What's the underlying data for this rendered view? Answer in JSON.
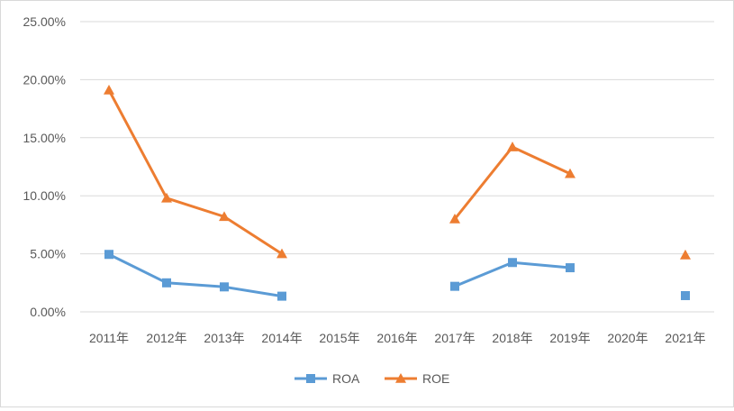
{
  "chart_data": {
    "type": "line",
    "categories": [
      "2011年",
      "2012年",
      "2013年",
      "2014年",
      "2015年",
      "2016年",
      "2017年",
      "2018年",
      "2019年",
      "2020年",
      "2021年"
    ],
    "series": [
      {
        "name": "ROA",
        "color": "#5b9bd5",
        "marker": "square",
        "values": [
          0.0495,
          0.025,
          0.0215,
          0.0135,
          null,
          null,
          0.022,
          0.0425,
          0.038,
          null,
          0.014
        ]
      },
      {
        "name": "ROE",
        "color": "#ed7d31",
        "marker": "triangle",
        "values": [
          0.191,
          0.098,
          0.082,
          0.05,
          null,
          null,
          0.08,
          0.142,
          0.119,
          null,
          0.049
        ]
      }
    ],
    "ylim": [
      0,
      0.25
    ],
    "yticks": [
      "0.00%",
      "5.00%",
      "10.00%",
      "15.00%",
      "20.00%",
      "25.00%"
    ],
    "grid": true,
    "legend": "bottom"
  }
}
